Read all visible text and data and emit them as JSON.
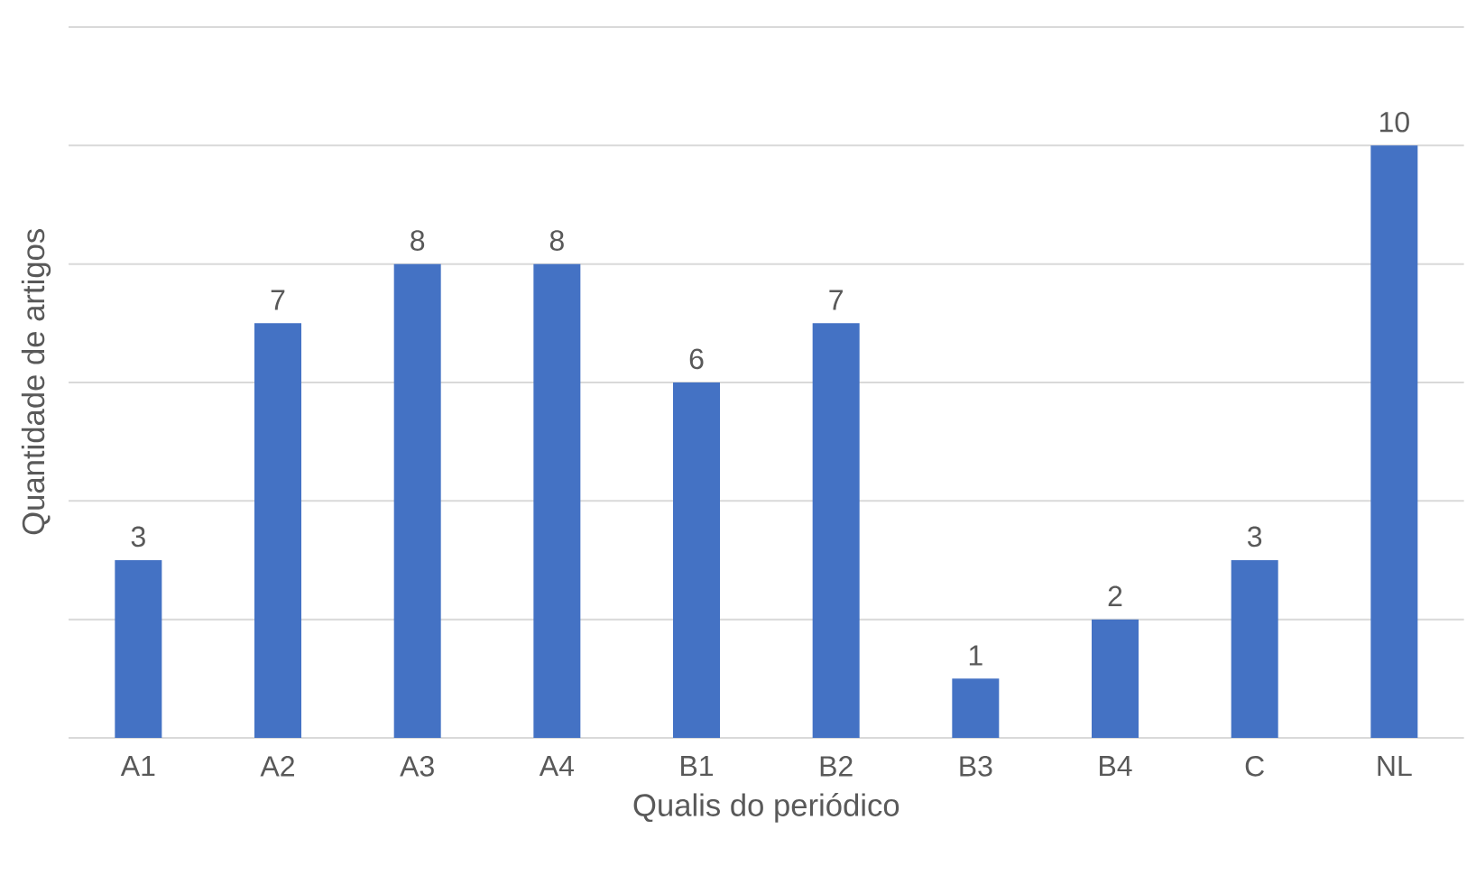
{
  "chart_data": {
    "type": "bar",
    "xlabel": "Qualis do periódico",
    "ylabel": "Quantidade de artigos",
    "categories": [
      "A1",
      "A2",
      "A3",
      "A4",
      "B1",
      "B2",
      "B3",
      "B4",
      "C",
      "NL"
    ],
    "values": [
      3,
      7,
      8,
      8,
      6,
      7,
      1,
      2,
      3,
      10
    ],
    "color": "#4472c4",
    "tick_labels": "x",
    "grid": "y",
    "data_labels": true
  }
}
